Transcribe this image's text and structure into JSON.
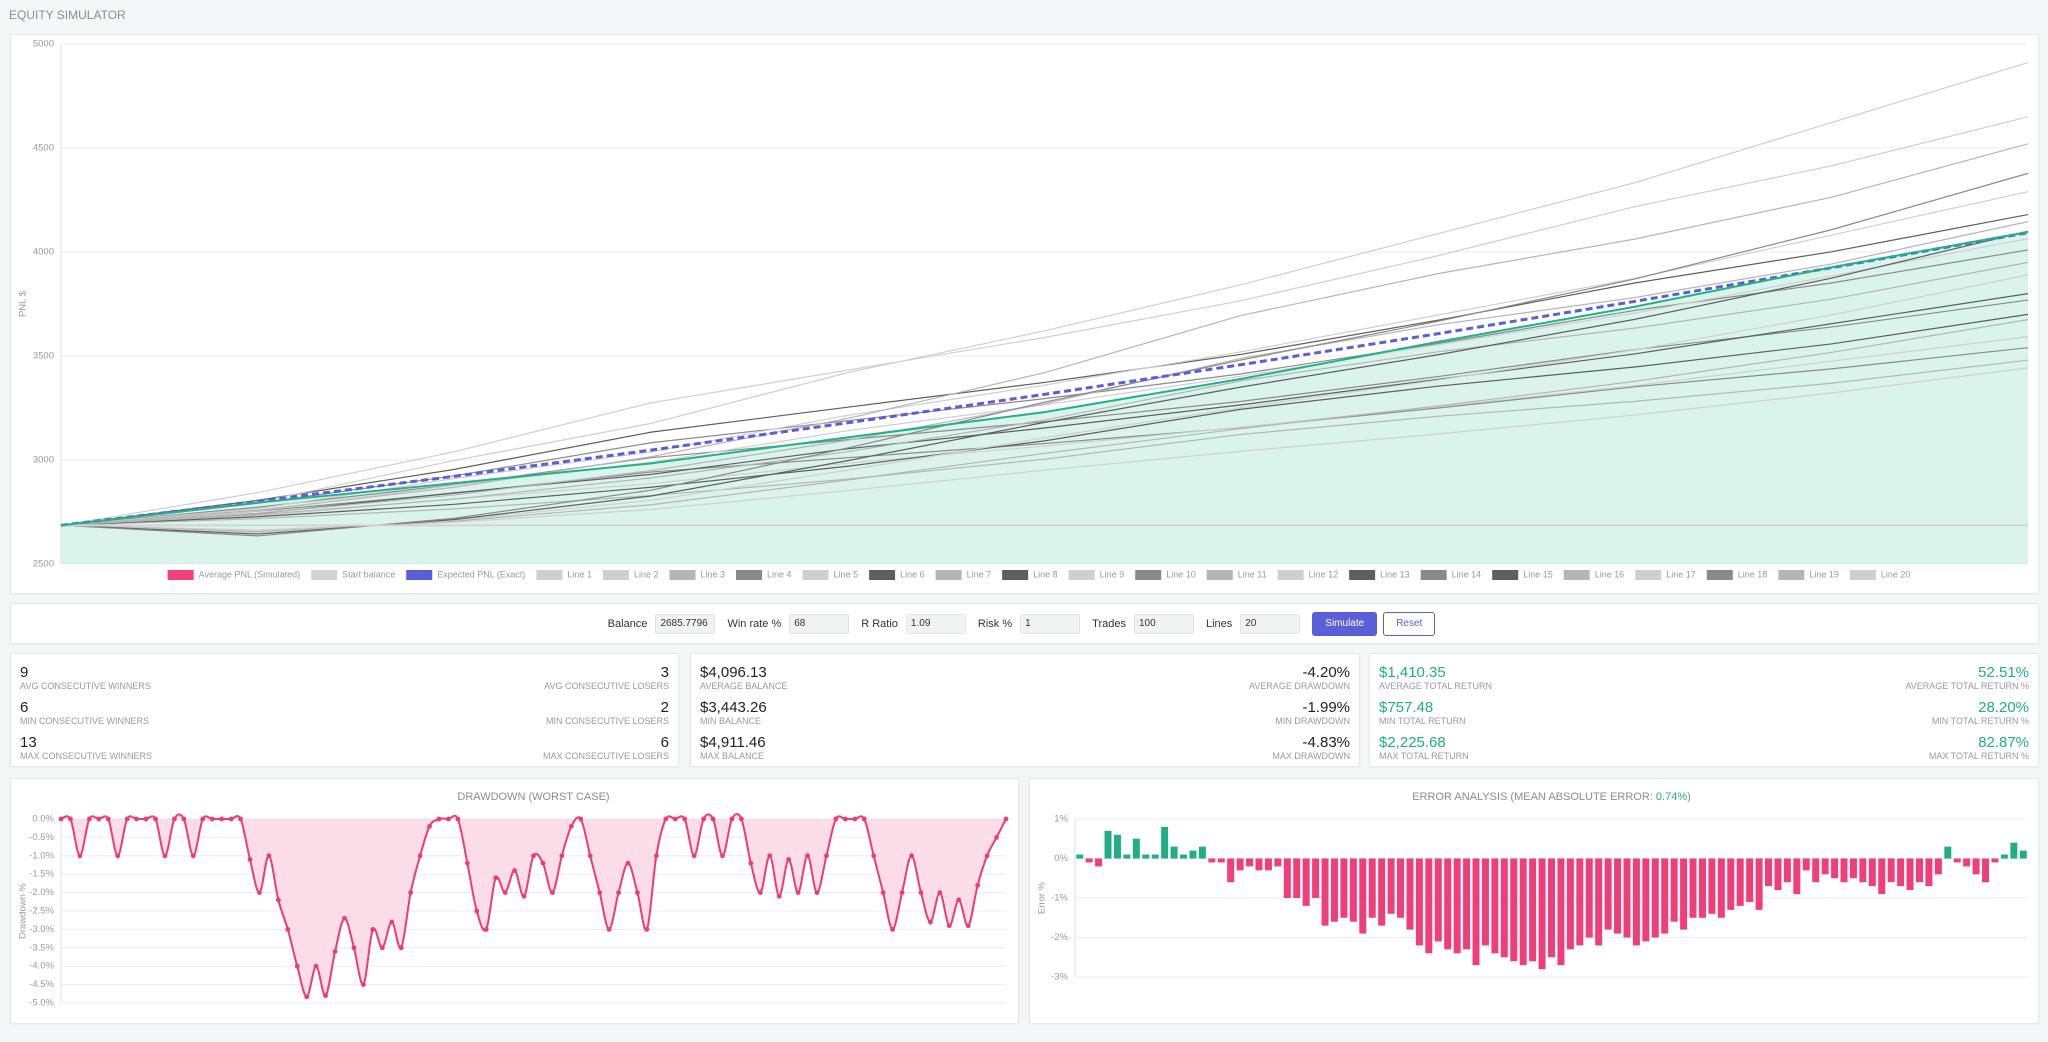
{
  "header": {
    "title": "EQUITY SIMULATOR"
  },
  "controls": {
    "fields": [
      {
        "label": "Balance",
        "value": "2685.7796"
      },
      {
        "label": "Win rate %",
        "value": "68"
      },
      {
        "label": "R Ratio",
        "value": "1.09"
      },
      {
        "label": "Risk %",
        "value": "1"
      },
      {
        "label": "Trades",
        "value": "100"
      },
      {
        "label": "Lines",
        "value": "20"
      }
    ],
    "buttons": [
      "Simulate",
      "Reset"
    ]
  },
  "stats": {
    "cards": [
      {
        "value_color": "#222222",
        "rows": [
          {
            "left": {
              "value": "9",
              "label": "AVG CONSECUTIVE WINNERS"
            },
            "right": {
              "value": "3",
              "label": "AVG CONSECUTIVE LOSERS"
            }
          },
          {
            "left": {
              "value": "6",
              "label": "MIN CONSECUTIVE WINNERS"
            },
            "right": {
              "value": "2",
              "label": "MIN CONSECUTIVE LOSERS"
            }
          },
          {
            "left": {
              "value": "13",
              "label": "MAX CONSECUTIVE WINNERS"
            },
            "right": {
              "value": "6",
              "label": "MAX CONSECUTIVE LOSERS"
            }
          }
        ]
      },
      {
        "value_color": "#222222",
        "rows": [
          {
            "left": {
              "value": "$4,096.13",
              "label": "AVERAGE BALANCE"
            },
            "right": {
              "value": "-4.20%",
              "label": "AVERAGE DRAWDOWN"
            }
          },
          {
            "left": {
              "value": "$3,443.26",
              "label": "MIN BALANCE"
            },
            "right": {
              "value": "-1.99%",
              "label": "MIN DRAWDOWN"
            }
          },
          {
            "left": {
              "value": "$4,911.46",
              "label": "MAX BALANCE"
            },
            "right": {
              "value": "-4.83%",
              "label": "MAX DRAWDOWN"
            }
          }
        ]
      },
      {
        "value_color": "#1fae86",
        "rows": [
          {
            "left": {
              "value": "$1,410.35",
              "label": "AVERAGE TOTAL RETURN"
            },
            "right": {
              "value": "52.51%",
              "label": "AVERAGE TOTAL RETURN %"
            }
          },
          {
            "left": {
              "value": "$757.48",
              "label": "MIN TOTAL RETURN"
            },
            "right": {
              "value": "28.20%",
              "label": "MIN TOTAL RETURN %"
            }
          },
          {
            "left": {
              "value": "$2,225.68",
              "label": "MAX TOTAL RETURN"
            },
            "right": {
              "value": "82.87%",
              "label": "MAX TOTAL RETURN %"
            }
          }
        ]
      }
    ]
  },
  "chart_data": [
    {
      "type": "line",
      "y_label": "PNL $",
      "x": [
        0,
        10,
        20,
        30,
        40,
        50,
        60,
        70,
        80,
        90,
        100
      ],
      "xlim": [
        0,
        100
      ],
      "ylim": [
        2500,
        5000
      ],
      "yticks": [
        2500,
        3000,
        3500,
        4000,
        4500,
        5000
      ],
      "grid": true,
      "series": [
        {
          "name": "Average PNL (Simulated)",
          "color": "#f2417b",
          "line_color": "#20b28a",
          "fill_color": "#d3f2e8",
          "values": [
            2685.78,
            2795,
            2889,
            2984,
            3109,
            3230,
            3390,
            3568,
            3737,
            3926,
            4096.13
          ]
        },
        {
          "name": "Start balance",
          "color": "#d3d3d3",
          "value": 2685.78
        },
        {
          "name": "Expected PNL (Exact)",
          "color": "#5a5fd8",
          "dashed": true,
          "values": [
            2685.78,
            2801.3,
            2921.9,
            3047.6,
            3178.8,
            3315.6,
            3458.3,
            3607.1,
            3762.4,
            3924.3,
            4093.2
          ]
        },
        {
          "name": "Line 1",
          "color": "#cfcfcf",
          "values": [
            2686,
            2797,
            2998,
            3176,
            3420,
            3621,
            3843,
            4088,
            4333,
            4622,
            4911
          ]
        },
        {
          "name": "Line 2",
          "color": "#cfcfcf",
          "values": [
            2686,
            2843,
            3040,
            3275,
            3432,
            3589,
            3766,
            3982,
            4218,
            4414,
            4650
          ]
        },
        {
          "name": "Line 3",
          "color": "#b5b5b5",
          "values": [
            2686,
            2759,
            2869,
            3016,
            3200,
            3420,
            3695,
            3896,
            4062,
            4263,
            4520
          ]
        },
        {
          "name": "Line 4",
          "color": "#8a8a8a",
          "values": [
            2686,
            2635,
            2720,
            2855,
            3058,
            3278,
            3481,
            3667,
            3870,
            4107,
            4378
          ]
        },
        {
          "name": "Line 5",
          "color": "#cfcfcf",
          "values": [
            2686,
            2766,
            2911,
            3039,
            3215,
            3360,
            3520,
            3697,
            3873,
            4081,
            4290
          ]
        },
        {
          "name": "Line 6",
          "color": "#5e5e5e",
          "values": [
            2686,
            2806,
            2955,
            3134,
            3254,
            3373,
            3508,
            3672,
            3851,
            4001,
            4180
          ]
        },
        {
          "name": "Line 7",
          "color": "#b5b5b5",
          "values": [
            2686,
            2744,
            2832,
            2949,
            3095,
            3270,
            3489,
            3650,
            3781,
            3942,
            4146
          ]
        },
        {
          "name": "Line 8",
          "color": "#5e5e5e",
          "values": [
            2686,
            2644,
            2714,
            2827,
            2997,
            3181,
            3351,
            3506,
            3676,
            3874,
            4100
          ]
        },
        {
          "name": "Line 9",
          "color": "#cfcfcf",
          "values": [
            2686,
            2755,
            2879,
            2989,
            3141,
            3265,
            3403,
            3554,
            3706,
            3885,
            4064
          ]
        },
        {
          "name": "Line 10",
          "color": "#8a8a8a",
          "values": [
            2686,
            2792,
            2924,
            3083,
            3189,
            3295,
            3414,
            3560,
            3719,
            3851,
            4010
          ]
        },
        {
          "name": "Line 11",
          "color": "#b5b5b5",
          "values": [
            2686,
            2737,
            2812,
            2914,
            3040,
            3192,
            3381,
            3520,
            3634,
            3773,
            3950
          ]
        },
        {
          "name": "Line 12",
          "color": "#cfcfcf",
          "values": [
            2686,
            2650,
            2710,
            2806,
            2951,
            3107,
            3252,
            3384,
            3529,
            3697,
            3890
          ]
        },
        {
          "name": "Line 13",
          "color": "#5e5e5e",
          "values": [
            2686,
            2742,
            2842,
            2931,
            3054,
            3154,
            3265,
            3388,
            3510,
            3655,
            3800
          ]
        },
        {
          "name": "Line 14",
          "color": "#8a8a8a",
          "values": [
            2686,
            2773,
            2881,
            3011,
            3098,
            3184,
            3282,
            3401,
            3531,
            3639,
            3769
          ]
        },
        {
          "name": "Line 15",
          "color": "#5e5e5e",
          "values": [
            2686,
            2727,
            2787,
            2869,
            2970,
            3092,
            3244,
            3355,
            3447,
            3558,
            3700
          ]
        },
        {
          "name": "Line 16",
          "color": "#b5b5b5",
          "values": [
            2686,
            2656,
            2706,
            2785,
            2904,
            3032,
            3151,
            3260,
            3378,
            3517,
            3675
          ]
        },
        {
          "name": "Line 17",
          "color": "#cfcfcf",
          "values": [
            2686,
            2731,
            2813,
            2886,
            2985,
            3067,
            3158,
            3257,
            3357,
            3475,
            3593
          ]
        },
        {
          "name": "Line 18",
          "color": "#8a8a8a",
          "values": [
            2686,
            2754,
            2840,
            2942,
            3011,
            3079,
            3156,
            3250,
            3352,
            3438,
            3540
          ]
        },
        {
          "name": "Line 19",
          "color": "#b5b5b5",
          "values": [
            2686,
            2718,
            2765,
            2829,
            2908,
            3004,
            3123,
            3210,
            3282,
            3369,
            3480
          ]
        },
        {
          "name": "Line 20",
          "color": "#cfcfcf",
          "values": [
            2686,
            2663,
            2701,
            2762,
            2853,
            2951,
            3042,
            3125,
            3216,
            3322,
            3443
          ]
        }
      ]
    },
    {
      "type": "area",
      "title": "DRAWDOWN (WORST CASE)",
      "y_label": "Drawdown %",
      "color": "#ee3b78",
      "fill_color": "#fbdde7",
      "grid": true,
      "ylim": [
        -5,
        0
      ],
      "yticks": [
        {
          "value": 0,
          "label": "0.0%"
        },
        {
          "value": -0.5,
          "label": "-0.5%"
        },
        {
          "value": -1,
          "label": "-1.0%"
        },
        {
          "value": -1.5,
          "label": "-1.5%"
        },
        {
          "value": -2,
          "label": "-2.0%"
        },
        {
          "value": -2.5,
          "label": "-2.5%"
        },
        {
          "value": -3,
          "label": "-3.0%"
        },
        {
          "value": -3.5,
          "label": "-3.5%"
        },
        {
          "value": -4,
          "label": "-4.0%"
        },
        {
          "value": -4.5,
          "label": "-4.5%"
        },
        {
          "value": -5,
          "label": "-5.0%"
        }
      ],
      "values": [
        0,
        0,
        -1.0,
        0,
        0,
        0,
        -1.0,
        0,
        0,
        0,
        0,
        -1.0,
        0,
        0,
        -1.0,
        0,
        0,
        0,
        0,
        0,
        -1.1,
        -2.0,
        -1.0,
        -2.2,
        -3.0,
        -4.0,
        -4.83,
        -4.0,
        -4.8,
        -3.6,
        -2.7,
        -3.5,
        -4.5,
        -3.0,
        -3.5,
        -2.8,
        -3.5,
        -2.0,
        -1.0,
        -0.2,
        0,
        0,
        0,
        -1.2,
        -2.5,
        -3.0,
        -1.6,
        -2.0,
        -1.4,
        -2.1,
        -1.0,
        -1.2,
        -2.0,
        -1.0,
        -0.2,
        0,
        -1.0,
        -2.0,
        -3.0,
        -2.0,
        -1.2,
        -2.0,
        -3.0,
        -1.0,
        0,
        0,
        0,
        -1.0,
        0,
        0,
        -1.0,
        0,
        0,
        -1.2,
        -2.0,
        -1.0,
        -2.1,
        -1.1,
        -2.0,
        -1.0,
        -2.0,
        -1.0,
        0,
        0,
        0,
        0,
        -1.0,
        -2.0,
        -3.0,
        -2.0,
        -1.0,
        -2.0,
        -2.8,
        -2.0,
        -2.9,
        -2.2,
        -2.9,
        -1.8,
        -1.0,
        -0.5,
        0
      ]
    },
    {
      "type": "bar",
      "title": "ERROR ANALYSIS (MEAN ABSOLUTE ERROR: ",
      "title_highlight": "0.74%",
      "title_end": ")",
      "highlight_color": "#1fae86",
      "y_label": "Error %",
      "positive_color": "#1fae86",
      "negative_color": "#f03e7a",
      "grid": true,
      "ylim": [
        -3,
        1
      ],
      "yticks": [
        {
          "value": 1,
          "label": "1%"
        },
        {
          "value": 0,
          "label": "0%"
        },
        {
          "value": -1,
          "label": "-1%"
        },
        {
          "value": -2,
          "label": "-2%"
        },
        {
          "value": -3,
          "label": "-3%"
        }
      ],
      "values": [
        0.1,
        -0.1,
        -0.2,
        0.7,
        0.6,
        0.1,
        0.5,
        0.1,
        0.1,
        0.8,
        0.3,
        0.1,
        0.2,
        0.3,
        -0.1,
        -0.1,
        -0.6,
        -0.3,
        -0.2,
        -0.3,
        -0.3,
        -0.2,
        -1.0,
        -1.0,
        -1.2,
        -1.0,
        -1.7,
        -1.6,
        -1.5,
        -1.6,
        -1.9,
        -1.5,
        -1.7,
        -1.4,
        -1.5,
        -1.8,
        -2.2,
        -2.4,
        -2.1,
        -2.3,
        -2.4,
        -2.3,
        -2.7,
        -2.2,
        -2.4,
        -2.5,
        -2.6,
        -2.7,
        -2.6,
        -2.8,
        -2.5,
        -2.7,
        -2.3,
        -2.2,
        -2.0,
        -2.2,
        -1.8,
        -1.9,
        -2.0,
        -2.2,
        -2.1,
        -2.0,
        -1.9,
        -1.6,
        -1.8,
        -1.5,
        -1.5,
        -1.4,
        -1.5,
        -1.3,
        -1.2,
        -1.1,
        -1.3,
        -0.7,
        -0.8,
        -0.6,
        -0.9,
        -0.3,
        -0.6,
        -0.4,
        -0.5,
        -0.6,
        -0.5,
        -0.6,
        -0.7,
        -0.9,
        -0.6,
        -0.7,
        -0.8,
        -0.6,
        -0.7,
        -0.4,
        0.3,
        -0.1,
        -0.2,
        -0.4,
        -0.6,
        -0.1,
        0.1,
        0.4,
        0.2
      ]
    }
  ]
}
